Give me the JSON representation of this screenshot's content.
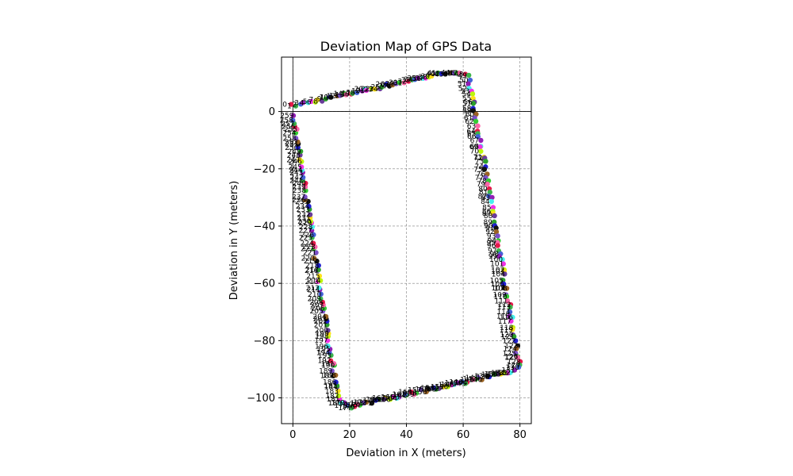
{
  "chart_data": {
    "type": "scatter",
    "title": "Deviation Map of GPS Data",
    "xlabel": "Deviation in X (meters)",
    "ylabel": "Deviation in Y (meters)",
    "xlim": [
      -4,
      84
    ],
    "ylim": [
      -109,
      19
    ],
    "xticks": [
      "0",
      "20",
      "40",
      "60",
      "80"
    ],
    "yticks": [
      "0",
      "−20",
      "−40",
      "−60",
      "−80",
      "−100"
    ],
    "grid": true,
    "reference_lines": {
      "x": 0,
      "y": 0
    },
    "point_labels_printed": true,
    "path_vertices": [
      [
        0,
        2
      ],
      [
        56,
        14
      ],
      [
        62,
        12
      ],
      [
        80,
        -89
      ],
      [
        77,
        -91
      ],
      [
        20,
        -103
      ],
      [
        16,
        -101
      ],
      [
        0,
        0
      ]
    ],
    "approx_point_count": 260,
    "palette": [
      "#e6194b",
      "#3cb44b",
      "#4363d8",
      "#911eb4",
      "#46f0f0",
      "#f032e6",
      "#bcf60c",
      "#ffe119",
      "#6a3d9a",
      "#2ca02c",
      "#1f1fd0",
      "#111111",
      "#9a6324",
      "#7b4fc9",
      "#33cc33",
      "#ff66aa"
    ]
  }
}
